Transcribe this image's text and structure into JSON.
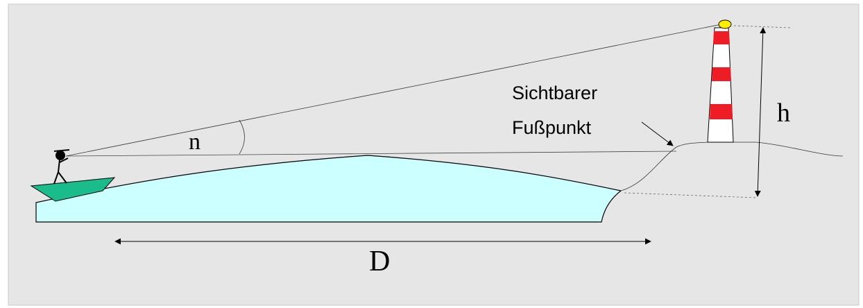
{
  "labels": {
    "angle": "n",
    "height": "h",
    "distance": "D",
    "visible_foot": [
      "Sichtbarer",
      "Fußpunkt"
    ]
  }
}
